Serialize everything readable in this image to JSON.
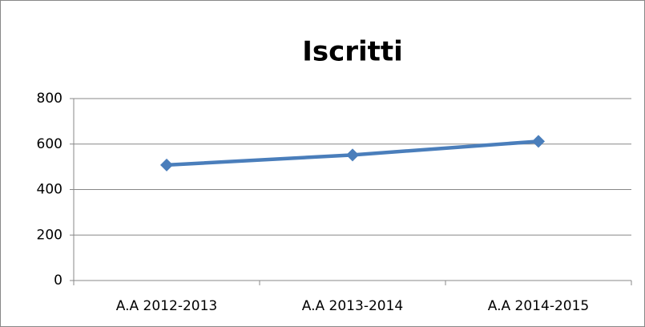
{
  "chart_data": {
    "type": "line",
    "title": "Iscritti",
    "categories": [
      "A.A 2012-2013",
      "A.A 2013-2014",
      "A.A 2014-2015"
    ],
    "series": [
      {
        "name": "Iscritti",
        "color": "#4a7ebb",
        "values": [
          508,
          552,
          612
        ]
      }
    ],
    "ylim": [
      0,
      800
    ],
    "yticks": [
      0,
      200,
      400,
      600,
      800
    ],
    "grid": true
  }
}
